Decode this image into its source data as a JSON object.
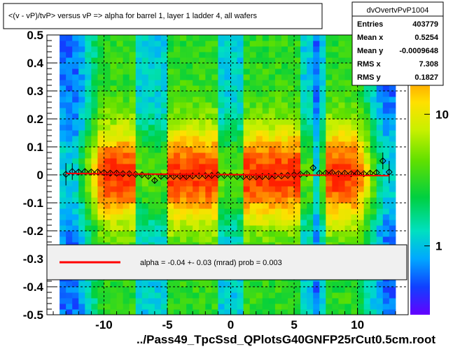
{
  "chart_data": {
    "type": "heatmap",
    "title": "<(v - vP)/tvP> versus   vP => alpha for barrel 1, layer 1 ladder 4, all wafers",
    "xlabel": "../Pass49_TpcSsd_QPlotsG40GNFP25rCut0.5cm.root",
    "ylabel": "",
    "xlim": [
      -14.5,
      14
    ],
    "ylim": [
      -0.5,
      0.5
    ],
    "x_ticks": [
      "-10",
      "-5",
      "0",
      "5",
      "10"
    ],
    "x_tick_values": [
      -10,
      -5,
      0,
      5,
      10
    ],
    "y_ticks": [
      "-0.5",
      "-0.4",
      "-0.3",
      "-0.2",
      "-0.1",
      "0",
      "0.1",
      "0.2",
      "0.3",
      "0.4",
      "0.5"
    ],
    "y_tick_values": [
      -0.5,
      -0.4,
      -0.3,
      -0.2,
      -0.1,
      0,
      0.1,
      0.2,
      0.3,
      0.4,
      0.5
    ],
    "z_ticks": [
      "1",
      "10"
    ],
    "z_tick_values": [
      1,
      10
    ],
    "z_log": true,
    "z_range": [
      0.3,
      40
    ],
    "grid": true,
    "stats": {
      "name": "dvOvertvPvP1004",
      "rows": [
        {
          "label": "Entries",
          "value": "403779"
        },
        {
          "label": "Mean x",
          "value": "0.5254"
        },
        {
          "label": "Mean y",
          "value": "-0.0009648"
        },
        {
          "label": "RMS x",
          "value": "7.308"
        },
        {
          "label": "RMS y",
          "value": "0.1827"
        }
      ]
    },
    "fit_legend": "alpha =   -0.04 +-  0.03 (mrad) prob = 0.003",
    "fit_line": {
      "x": [
        -13,
        12.5
      ],
      "y": [
        0.005,
        -0.003
      ]
    },
    "profile": {
      "x": [
        -13.0,
        -12.5,
        -12.0,
        -11.5,
        -11.0,
        -10.5,
        -10.0,
        -9.5,
        -9.0,
        -8.5,
        -8.0,
        -7.5,
        -7.0,
        -6.5,
        -6.0,
        -5.5,
        -5.0,
        -4.5,
        -4.0,
        -3.5,
        -3.0,
        -2.5,
        -2.0,
        -1.5,
        -1.0,
        -0.5,
        0.0,
        0.5,
        1.0,
        1.5,
        2.0,
        2.5,
        3.0,
        3.5,
        4.0,
        4.5,
        5.0,
        5.5,
        6.0,
        6.5,
        7.0,
        7.5,
        8.0,
        8.5,
        9.0,
        9.5,
        10.0,
        10.5,
        11.0,
        11.5,
        12.0,
        12.5
      ],
      "y": [
        0.002,
        0.012,
        0.01,
        0.012,
        0.01,
        0.01,
        0.008,
        0.006,
        0.006,
        0.004,
        0.004,
        0.002,
        0.0,
        -0.005,
        -0.02,
        -0.005,
        -0.004,
        -0.006,
        -0.005,
        -0.006,
        -0.004,
        -0.004,
        -0.003,
        -0.002,
        0.0,
        -0.002,
        -0.002,
        -0.006,
        -0.006,
        -0.008,
        -0.007,
        -0.006,
        -0.006,
        -0.004,
        -0.004,
        -0.002,
        0.0,
        0.002,
        0.004,
        0.025,
        0.006,
        0.006,
        0.008,
        0.004,
        0.006,
        0.004,
        0.006,
        0.004,
        0.006,
        0.008,
        0.05,
        0.01
      ],
      "err": [
        0.04,
        0.03,
        0.01,
        0.008,
        0.006,
        0.006,
        0.005,
        0.005,
        0.005,
        0.005,
        0.005,
        0.005,
        0.006,
        0.006,
        0.01,
        0.006,
        0.005,
        0.005,
        0.005,
        0.005,
        0.005,
        0.005,
        0.005,
        0.005,
        0.005,
        0.005,
        0.005,
        0.005,
        0.005,
        0.005,
        0.005,
        0.005,
        0.005,
        0.005,
        0.005,
        0.005,
        0.005,
        0.005,
        0.006,
        0.012,
        0.006,
        0.005,
        0.005,
        0.005,
        0.005,
        0.005,
        0.005,
        0.006,
        0.008,
        0.01,
        0.03,
        0.04
      ]
    },
    "colors": {
      "fit": "#ff0000",
      "marker": "#000000",
      "frame": "#000000",
      "legend_bg": "#ffffff"
    }
  }
}
